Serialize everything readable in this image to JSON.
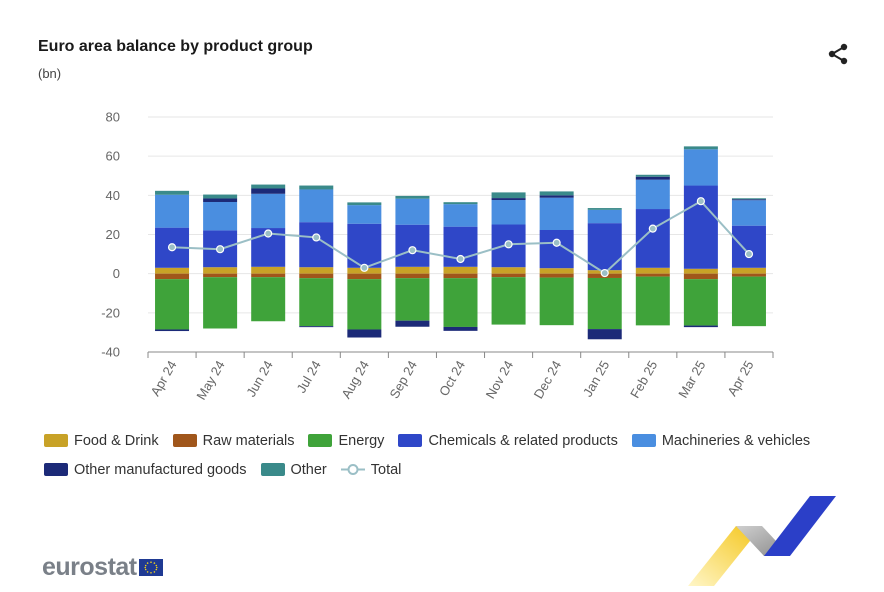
{
  "header": {
    "title": "Euro area balance by product group",
    "unit": "(bn)"
  },
  "icons": {
    "share": "share-icon",
    "flag": "eu-flag-icon"
  },
  "logo": {
    "text": "eurostat"
  },
  "colors": {
    "food": "#c8a227",
    "raw": "#a0561b",
    "energy": "#3fa33a",
    "chemicals": "#2f47c8",
    "machinery": "#4a8ee0",
    "manufactured": "#1c2a78",
    "other": "#3a8a8a",
    "total": "#9bbfc6",
    "grid": "#e6e6e6",
    "axis": "#888888",
    "tick_text": "#666666"
  },
  "chart_data": {
    "type": "bar",
    "stacked": true,
    "title": "Euro area balance by product group",
    "ylabel": "(bn)",
    "xlabel": "",
    "ylim": [
      -40,
      80
    ],
    "yticks": [
      -40,
      -20,
      0,
      20,
      40,
      60,
      80
    ],
    "ytick_labels": [
      "-40",
      "-20",
      "0",
      "20",
      "40",
      "60",
      "80"
    ],
    "grid": true,
    "legend_position": "bottom",
    "categories": [
      "Apr 24",
      "May 24",
      "Jun 24",
      "Jul 24",
      "Aug 24",
      "Sep 24",
      "Oct 24",
      "Nov 24",
      "Dec 24",
      "Jan 25",
      "Feb 25",
      "Mar 25",
      "Apr 25"
    ],
    "series": [
      {
        "key": "food",
        "name": "Food & Drink",
        "values": [
          3.0,
          3.3,
          3.5,
          3.3,
          3.0,
          3.5,
          3.5,
          3.3,
          2.8,
          1.8,
          3.0,
          2.5,
          3.0
        ]
      },
      {
        "key": "raw",
        "name": "Raw materials",
        "values": [
          -2.8,
          -1.8,
          -1.8,
          -2.3,
          -2.8,
          -2.3,
          -2.3,
          -1.8,
          -2.0,
          -2.2,
          -1.5,
          -2.8,
          -1.5
        ]
      },
      {
        "key": "energy",
        "name": "Energy",
        "values": [
          -25.7,
          -26.2,
          -22.5,
          -24.5,
          -25.7,
          -21.7,
          -24.9,
          -24.2,
          -24.3,
          -26.1,
          -24.9,
          -23.7,
          -25.3
        ]
      },
      {
        "key": "chemicals",
        "name": "Chemicals & related products",
        "values": [
          20.5,
          18.8,
          19.8,
          23.0,
          22.5,
          21.5,
          20.5,
          21.8,
          19.5,
          24.0,
          30.0,
          42.5,
          21.5
        ]
      },
      {
        "key": "machinery",
        "name": "Machineries & vehicles",
        "values": [
          16.8,
          14.5,
          17.5,
          16.7,
          9.5,
          13.3,
          11.5,
          12.5,
          16.5,
          6.8,
          15.0,
          18.5,
          13.0
        ]
      },
      {
        "key": "manufactured",
        "name": "Other manufactured goods",
        "values": [
          -0.8,
          1.8,
          2.7,
          -0.5,
          -4.1,
          -3.1,
          -2.0,
          1.0,
          1.2,
          -5.2,
          1.5,
          -0.8,
          0.5
        ]
      },
      {
        "key": "other",
        "name": "Other",
        "values": [
          2.0,
          2.0,
          2.0,
          2.0,
          1.4,
          1.4,
          1.0,
          2.9,
          2.0,
          0.9,
          1.0,
          1.5,
          0.5
        ]
      }
    ],
    "line": {
      "key": "total",
      "name": "Total",
      "values": [
        13.5,
        12.5,
        20.5,
        18.5,
        3.0,
        12.0,
        7.5,
        15.0,
        15.8,
        0.3,
        23.0,
        37.0,
        10.0
      ]
    }
  }
}
